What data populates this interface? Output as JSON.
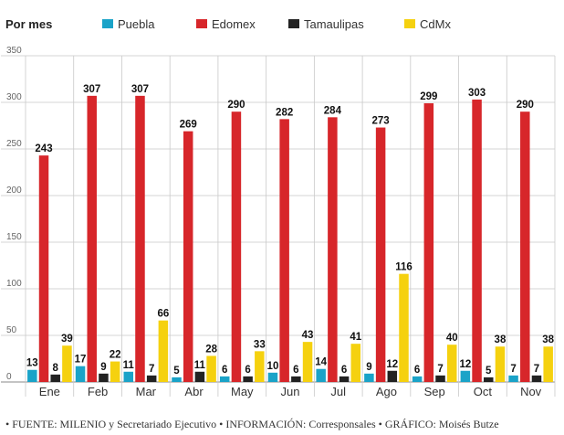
{
  "legend_title": "Por mes",
  "source": "• FUENTE: MILENIO y Secretariado Ejecutivo • INFORMACIÓN: Corresponsales • GRÁFICO: Moisés Butze",
  "chart_data": {
    "type": "bar",
    "categories": [
      "Ene",
      "Feb",
      "Mar",
      "Abr",
      "May",
      "Jun",
      "Jul",
      "Ago",
      "Sep",
      "Oct",
      "Nov"
    ],
    "series": [
      {
        "name": "Puebla",
        "color": "#1aa3c8",
        "values": [
          13,
          17,
          11,
          5,
          6,
          10,
          14,
          9,
          6,
          12,
          7
        ]
      },
      {
        "name": "Edomex",
        "color": "#d7262a",
        "values": [
          243,
          307,
          307,
          269,
          290,
          282,
          284,
          273,
          299,
          303,
          290
        ]
      },
      {
        "name": "Tamaulipas",
        "color": "#222222",
        "values": [
          8,
          9,
          7,
          11,
          6,
          6,
          6,
          12,
          7,
          5,
          7
        ]
      },
      {
        "name": "CdMx",
        "color": "#f5d10f",
        "values": [
          39,
          22,
          66,
          28,
          33,
          43,
          41,
          116,
          40,
          38,
          38
        ]
      }
    ],
    "ylim": [
      0,
      350
    ],
    "yticks": [
      0,
      50,
      100,
      150,
      200,
      250,
      300,
      350
    ],
    "grid": "horizontal",
    "legend_position": "top"
  }
}
